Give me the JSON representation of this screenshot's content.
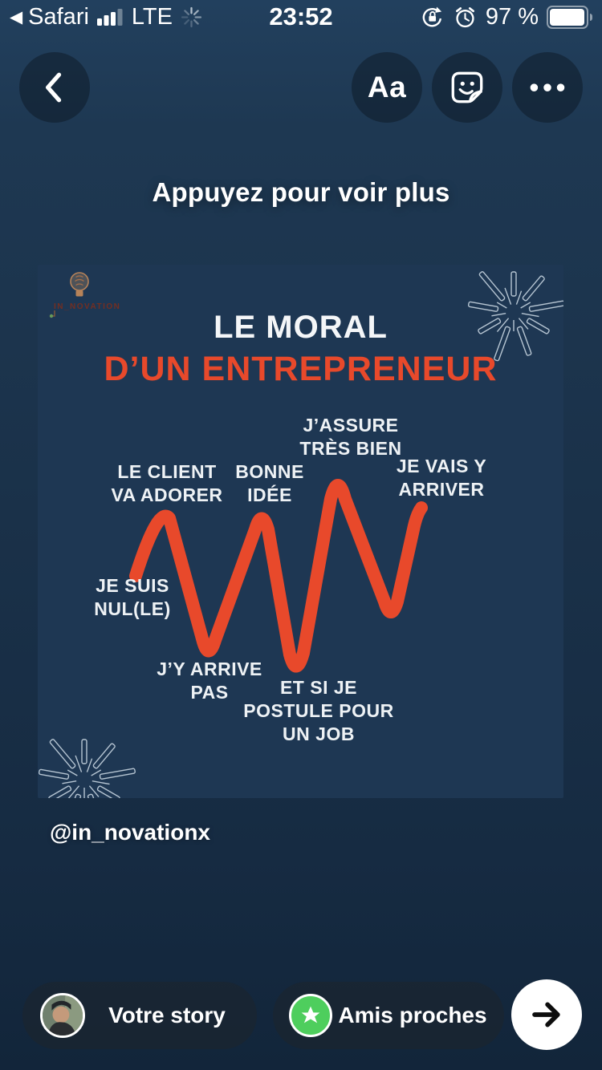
{
  "status_bar": {
    "back_to_app": "Safari",
    "carrier": "LTE",
    "time": "23:52",
    "battery_percent": "97 %"
  },
  "icons": {
    "back_to_app_chevron": "◀",
    "signal_bars": "cellular-signal-3-of-4",
    "network_spinner": "activity-spinner",
    "orientation_lock": "lock-with-circular-arrow",
    "alarm": "alarm-clock",
    "battery": "battery-97-percent",
    "back_chevron": "chevron-left",
    "sticker": "smiley-sticker-peeled-corner",
    "more_glyph": "•••",
    "close_friends_star": "★",
    "send_arrow": "→"
  },
  "top_toolbar": {
    "text_tool_label": "Aa"
  },
  "hint_text": "Appuyez pour voir plus",
  "card": {
    "logo_text": "IN_NOVATION",
    "title_line1": "LE MORAL",
    "title_line2": "D’UN ENTREPRENEUR",
    "annotations": {
      "assure": [
        "J’ASSURE",
        "TRÈS BIEN"
      ],
      "client": [
        "LE CLIENT",
        "VA ADORER"
      ],
      "bonne": [
        "BONNE",
        "IDÉE"
      ],
      "vais": [
        "JE VAIS Y",
        "ARRIVER"
      ],
      "nul": [
        "JE SUIS",
        "NUL(LE)"
      ],
      "arrive": [
        "J’Y ARRIVE",
        "PAS"
      ],
      "postule": [
        "ET SI JE",
        "POSTULE POUR",
        "UN JOB"
      ]
    }
  },
  "chart_data": {
    "type": "line",
    "title": "LE MORAL D’UN ENTREPRENEUR",
    "style": "hand-drawn orange zigzag, no axes or gridlines",
    "line_color": "#E8492B",
    "y_range": [
      0,
      1
    ],
    "points": [
      {
        "x": 0,
        "y": 0.45,
        "label": "JE SUIS NUL(LE)"
      },
      {
        "x": 1,
        "y": 0.8,
        "label": "LE CLIENT VA ADORER"
      },
      {
        "x": 2,
        "y": 0.15,
        "label": "J’Y ARRIVE PAS"
      },
      {
        "x": 3,
        "y": 0.8,
        "label": "BONNE IDÉE"
      },
      {
        "x": 4,
        "y": 0.08,
        "label": "ET SI JE POSTULE POUR UN JOB"
      },
      {
        "x": 5,
        "y": 0.97,
        "label": "J’ASSURE TRÈS BIEN"
      },
      {
        "x": 6,
        "y": 0.35,
        "label": ""
      },
      {
        "x": 7,
        "y": 0.82,
        "label": "JE VAIS Y ARRIVER"
      }
    ]
  },
  "author_handle": "@in_novationx",
  "bottom_bar": {
    "your_story_label": "Votre story",
    "close_friends_label": "Amis proches"
  },
  "colors": {
    "accent_orange": "#E8492B",
    "close_friends_green": "#4ECE5D",
    "background_navy": "#1A3149",
    "card_navy": "#1E3753"
  }
}
